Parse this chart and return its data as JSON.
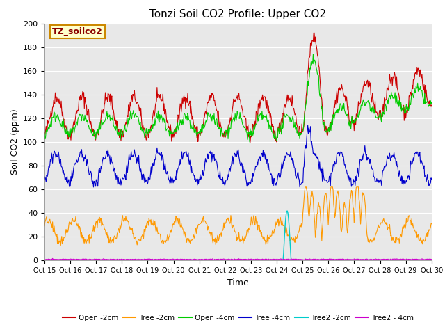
{
  "title": "Tonzi Soil CO2 Profile: Upper CO2",
  "xlabel": "Time",
  "ylabel": "Soil CO2 (ppm)",
  "ylim": [
    0,
    200
  ],
  "yticks": [
    0,
    20,
    40,
    60,
    80,
    100,
    120,
    140,
    160,
    180,
    200
  ],
  "xtick_labels": [
    "Oct 15",
    "Oct 16",
    "Oct 17",
    "Oct 18",
    "Oct 19",
    "Oct 20",
    "Oct 21",
    "Oct 22",
    "Oct 23",
    "Oct 24",
    "Oct 25",
    "Oct 26",
    "Oct 27",
    "Oct 28",
    "Oct 29",
    "Oct 30"
  ],
  "background_color": "#ffffff",
  "plot_bg_color": "#e8e8e8",
  "legend_label": "TZ_soilco2",
  "legend_box_color": "#ffffcc",
  "legend_box_edge": "#cc8800",
  "series_colors": {
    "open_2cm": "#cc0000",
    "tree_2cm": "#ff9900",
    "open_4cm": "#00cc00",
    "tree_4cm": "#0000cc",
    "tree2_2cm": "#00cccc",
    "tree2_4cm": "#cc00cc"
  },
  "series_labels": {
    "open_2cm": "Open -2cm",
    "tree_2cm": "Tree -2cm",
    "open_4cm": "Open -4cm",
    "tree_4cm": "Tree -4cm",
    "tree2_2cm": "Tree2 -2cm",
    "tree2_4cm": "Tree2 - 4cm"
  }
}
